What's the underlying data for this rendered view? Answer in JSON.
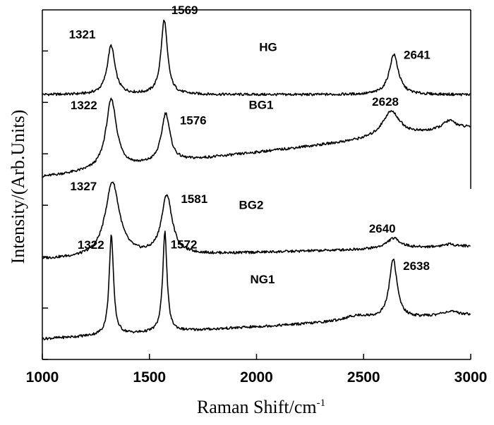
{
  "chart_data": {
    "type": "line",
    "xlabel": "Raman Shift/cm",
    "xlabel_superscript": "-1",
    "ylabel": "Intensity/(Arb.Units)",
    "xlim": [
      1000,
      3000
    ],
    "ylim": [
      0,
      6.8
    ],
    "x_ticks": [
      "1000",
      "1500",
      "2000",
      "2500",
      "3000"
    ],
    "grid": false,
    "series": [
      {
        "name": "HG",
        "baseline": 5.15,
        "slope": 0.0,
        "peaks": [
          {
            "x": 1321,
            "height": 0.95,
            "width": 22,
            "label": "1321"
          },
          {
            "x": 1569,
            "height": 1.45,
            "width": 18,
            "label": "1569"
          },
          {
            "x": 2641,
            "height": 0.78,
            "width": 26,
            "label": "2641"
          }
        ],
        "extra_peaks": []
      },
      {
        "name": "BG1",
        "baseline": 3.55,
        "slope": 0.000475,
        "peaks": [
          {
            "x": 1322,
            "height": 1.35,
            "width": 30,
            "label": "1322"
          },
          {
            "x": 1576,
            "height": 0.95,
            "width": 24,
            "label": "1576"
          },
          {
            "x": 2628,
            "height": 0.5,
            "width": 50,
            "label": "2628"
          }
        ],
        "extra_peaks": [
          {
            "x": 2900,
            "height": 0.18,
            "width": 40
          }
        ]
      },
      {
        "name": "BG2",
        "baseline": 1.95,
        "slope": 0.000125,
        "peaks": [
          {
            "x": 1327,
            "height": 1.45,
            "width": 40,
            "label": "1327"
          },
          {
            "x": 1581,
            "height": 1.15,
            "width": 30,
            "label": "1581"
          },
          {
            "x": 2640,
            "height": 0.2,
            "width": 40,
            "label": "2640"
          }
        ],
        "extra_peaks": [
          {
            "x": 2900,
            "height": 0.05,
            "width": 40
          }
        ]
      },
      {
        "name": "NG1",
        "baseline": 0.4,
        "slope": 0.000233,
        "peaks": [
          {
            "x": 1322,
            "height": 1.95,
            "width": 12,
            "label": "1322"
          },
          {
            "x": 1572,
            "height": 1.95,
            "width": 12,
            "label": "1572"
          },
          {
            "x": 2638,
            "height": 1.15,
            "width": 22,
            "label": "2638"
          }
        ],
        "extra_peaks": [
          {
            "x": 2470,
            "height": 0.1,
            "width": 80
          },
          {
            "x": 2900,
            "height": 0.08,
            "width": 50
          }
        ]
      }
    ]
  }
}
